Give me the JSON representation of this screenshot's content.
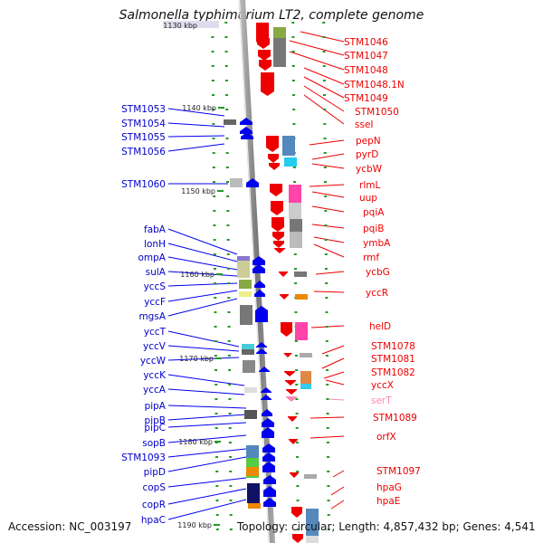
{
  "title": "Salmonella typhimurium LT2, complete genome",
  "accession": "Accession: NC_003197",
  "topology": "Topology: circular; Length: 4,857,432 bp; Genes: 4,541",
  "colors": {
    "forward": "#0000ee",
    "reverse": "#ee0000",
    "rna": "#ff88bb",
    "backbone": "#888888",
    "tick": "#229922"
  },
  "top_ruler": "1130 kbp",
  "rulers": [
    "1140 kbp",
    "1150 kbp",
    "1160 kbp",
    "1170 kbp",
    "1180 kbp",
    "1190 kbp"
  ],
  "left_labels": [
    "STM1053",
    "STM1054",
    "STM1055",
    "STM1056",
    "STM1060",
    "fabA",
    "lonH",
    "ompA",
    "sulA",
    "yccS",
    "yccF",
    "mgsA",
    "yccT",
    "yccV",
    "yccW",
    "yccK",
    "yccA",
    "pipA",
    "pipB",
    "pipC",
    "sopB",
    "STM1093",
    "pipD",
    "copS",
    "copR",
    "hpaC"
  ],
  "right_labels": [
    "STM1046",
    "STM1047",
    "STM1048",
    "STM1048.1N",
    "STM1049",
    "STM1050",
    "sseI",
    "pepN",
    "pyrD",
    "ycbW",
    "rlmL",
    "uup",
    "pqiA",
    "pqiB",
    "ymbA",
    "rmf",
    "ycbG",
    "yccR",
    "helD",
    "STM1078",
    "STM1081",
    "STM1082",
    "yccX",
    "serT",
    "STM1089",
    "orfX",
    "STM1097",
    "hpaG",
    "hpaE"
  ]
}
